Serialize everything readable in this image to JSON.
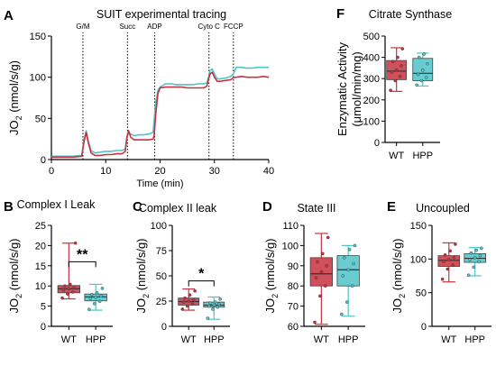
{
  "colors": {
    "wt": "#c8313f",
    "hpp": "#4fc3c7",
    "wt_fill": "#c8313f",
    "hpp_fill": "#4fc3c7"
  },
  "chart_data": [
    {
      "id": "A",
      "letter": "A",
      "type": "line",
      "title": "SUIT experimental tracing",
      "xlabel": "Time (min)",
      "ylabel": "JO",
      "ylabel_sub": "2",
      "ylabel_unit": " (nmol/s/g)",
      "xlim": [
        0,
        40
      ],
      "ylim": [
        0,
        150
      ],
      "xticks": [
        "0",
        "10",
        "20",
        "30",
        "40"
      ],
      "yticks": [
        "0",
        "50",
        "100",
        "150"
      ],
      "events": [
        {
          "label": "G/M",
          "x": 5.8
        },
        {
          "label": "Succ",
          "x": 14
        },
        {
          "label": "ADP",
          "x": 19
        },
        {
          "label": "Cyto C",
          "x": 29
        },
        {
          "label": "FCCP",
          "x": 33.5
        }
      ],
      "series": [
        {
          "key": "hpp",
          "x": [
            0,
            2,
            4,
            5.6,
            6.0,
            6.4,
            6.8,
            7.3,
            8,
            9,
            10,
            11,
            12,
            13,
            13.6,
            13.9,
            14.2,
            14.6,
            15.2,
            16,
            17,
            18,
            18.7,
            18.9,
            19.2,
            19.6,
            20,
            21,
            22,
            23,
            24,
            25,
            26,
            27,
            28,
            28.6,
            28.9,
            29.2,
            29.6,
            30,
            30.5,
            31,
            32,
            33,
            33.4,
            33.7,
            34,
            35,
            36,
            37,
            38,
            39,
            40
          ],
          "y": [
            4,
            4,
            4,
            5,
            24,
            35,
            22,
            11,
            8,
            9,
            10,
            10,
            11,
            11,
            13,
            26,
            33,
            31,
            29,
            30,
            30,
            31,
            33,
            47,
            70,
            84,
            88,
            92,
            92,
            91,
            91,
            91,
            91,
            92,
            92,
            93,
            99,
            108,
            110,
            104,
            98,
            98,
            99,
            101,
            103,
            107,
            112,
            112,
            111,
            111,
            112,
            112,
            112
          ]
        },
        {
          "key": "wt",
          "x": [
            0,
            2,
            4,
            5.6,
            6.0,
            6.4,
            6.8,
            7.3,
            8,
            9,
            10,
            11,
            12,
            13,
            13.6,
            13.9,
            14.2,
            14.6,
            15.2,
            16,
            17,
            18,
            18.7,
            18.9,
            19.2,
            19.6,
            20,
            21,
            22,
            23,
            24,
            25,
            26,
            27,
            28,
            28.6,
            28.9,
            29.2,
            29.6,
            30,
            30.5,
            31,
            32,
            33,
            33.4,
            33.7,
            34,
            35,
            36,
            37,
            38,
            39,
            40
          ],
          "y": [
            3,
            3,
            3,
            4,
            22,
            33,
            20,
            8,
            5,
            5,
            6,
            6,
            7,
            7,
            10,
            27,
            35,
            27,
            24,
            24,
            24,
            24,
            25,
            29,
            55,
            80,
            87,
            88,
            88,
            88,
            88,
            87,
            87,
            87,
            87,
            89,
            97,
            104,
            106,
            100,
            95,
            95,
            96,
            97,
            99,
            100,
            100,
            101,
            100,
            100,
            100,
            101,
            100
          ]
        }
      ]
    },
    {
      "id": "B",
      "letter": "B",
      "type": "box",
      "title": "Complex I Leak",
      "ylabel": "JO",
      "ylabel_sub": "2",
      "ylabel_unit": " (nmol/s/g)",
      "ylim": [
        0,
        25
      ],
      "yticks": [
        "0",
        "5",
        "10",
        "15",
        "20",
        "25"
      ],
      "categories": [
        "WT",
        "HPP"
      ],
      "series": [
        {
          "key": "wt",
          "min": 6.8,
          "q1": 8.3,
          "median": 9.3,
          "q3": 10.1,
          "max": 20.6,
          "points": [
            7.0,
            8.0,
            8.5,
            9.0,
            9.3,
            9.6,
            10.0,
            10.4,
            20.6
          ]
        },
        {
          "key": "hpp",
          "min": 4.0,
          "q1": 6.3,
          "median": 7.3,
          "q3": 8.0,
          "max": 10.4,
          "points": [
            4.2,
            5.6,
            6.2,
            6.9,
            7.2,
            7.5,
            7.9,
            8.3,
            9.4
          ]
        }
      ],
      "significance": "**"
    },
    {
      "id": "C",
      "letter": "C",
      "type": "box",
      "title": "Complex II leak",
      "ylabel": "JO",
      "ylabel_sub": "2",
      "ylabel_unit": " (nmol/s/g)",
      "ylim": [
        0,
        100
      ],
      "yticks": [
        "0",
        "25",
        "50",
        "75",
        "100"
      ],
      "categories": [
        "WT",
        "HPP"
      ],
      "series": [
        {
          "key": "wt",
          "min": 16,
          "q1": 21,
          "median": 24.5,
          "q3": 28,
          "max": 37,
          "points": [
            17,
            20,
            22,
            24,
            25,
            26,
            28,
            31,
            35
          ]
        },
        {
          "key": "hpp",
          "min": 7,
          "q1": 19,
          "median": 21,
          "q3": 24,
          "max": 29,
          "points": [
            8,
            17,
            19,
            20,
            21,
            22,
            23,
            24,
            27
          ]
        }
      ],
      "significance": "*"
    },
    {
      "id": "D",
      "letter": "D",
      "type": "box",
      "title": "State III",
      "ylabel": "JO",
      "ylabel_sub": "2",
      "ylabel_unit": " (nmol/s/g)",
      "ylim": [
        60,
        110
      ],
      "yticks": [
        "60",
        "70",
        "80",
        "90",
        "100",
        "110"
      ],
      "categories": [
        "WT",
        "HPP"
      ],
      "series": [
        {
          "key": "wt",
          "min": 61,
          "q1": 80,
          "median": 86,
          "q3": 94,
          "max": 106,
          "points": [
            62,
            75,
            80,
            84,
            87,
            90,
            92,
            96,
            104
          ]
        },
        {
          "key": "hpp",
          "min": 65,
          "q1": 80,
          "median": 88,
          "q3": 95,
          "max": 100,
          "points": [
            66,
            72,
            80,
            85,
            88,
            91,
            94,
            98,
            100
          ]
        }
      ]
    },
    {
      "id": "E",
      "letter": "E",
      "type": "box",
      "title": "Uncoupled",
      "ylabel": "JO",
      "ylabel_sub": "2",
      "ylabel_unit": " (nmol/s/g)",
      "ylim": [
        0,
        150
      ],
      "yticks": [
        "0",
        "50",
        "100",
        "150"
      ],
      "categories": [
        "WT",
        "HPP"
      ],
      "series": [
        {
          "key": "wt",
          "min": 66,
          "q1": 89,
          "median": 98,
          "q3": 105,
          "max": 124,
          "points": [
            70,
            85,
            91,
            96,
            99,
            102,
            106,
            112,
            122
          ]
        },
        {
          "key": "hpp",
          "min": 75,
          "q1": 95,
          "median": 101,
          "q3": 108,
          "max": 117,
          "points": [
            76,
            88,
            96,
            99,
            102,
            105,
            109,
            113,
            116
          ]
        }
      ]
    },
    {
      "id": "F",
      "letter": "F",
      "type": "box",
      "title": "Citrate Synthase",
      "ylabel": "Enzymatic Activity",
      "ylabel2": "(μmol/min/mg)",
      "ylim": [
        0,
        500
      ],
      "yticks": [
        "0",
        "100",
        "200",
        "300",
        "400",
        "500"
      ],
      "categories": [
        "WT",
        "HPP"
      ],
      "series": [
        {
          "key": "wt",
          "min": 240,
          "q1": 295,
          "median": 335,
          "q3": 385,
          "max": 445,
          "points": [
            245,
            290,
            310,
            330,
            340,
            360,
            380,
            400,
            440
          ]
        },
        {
          "key": "hpp",
          "min": 265,
          "q1": 290,
          "median": 325,
          "q3": 395,
          "max": 420,
          "points": [
            270,
            290,
            305,
            320,
            340,
            370,
            400,
            415
          ]
        }
      ]
    }
  ]
}
